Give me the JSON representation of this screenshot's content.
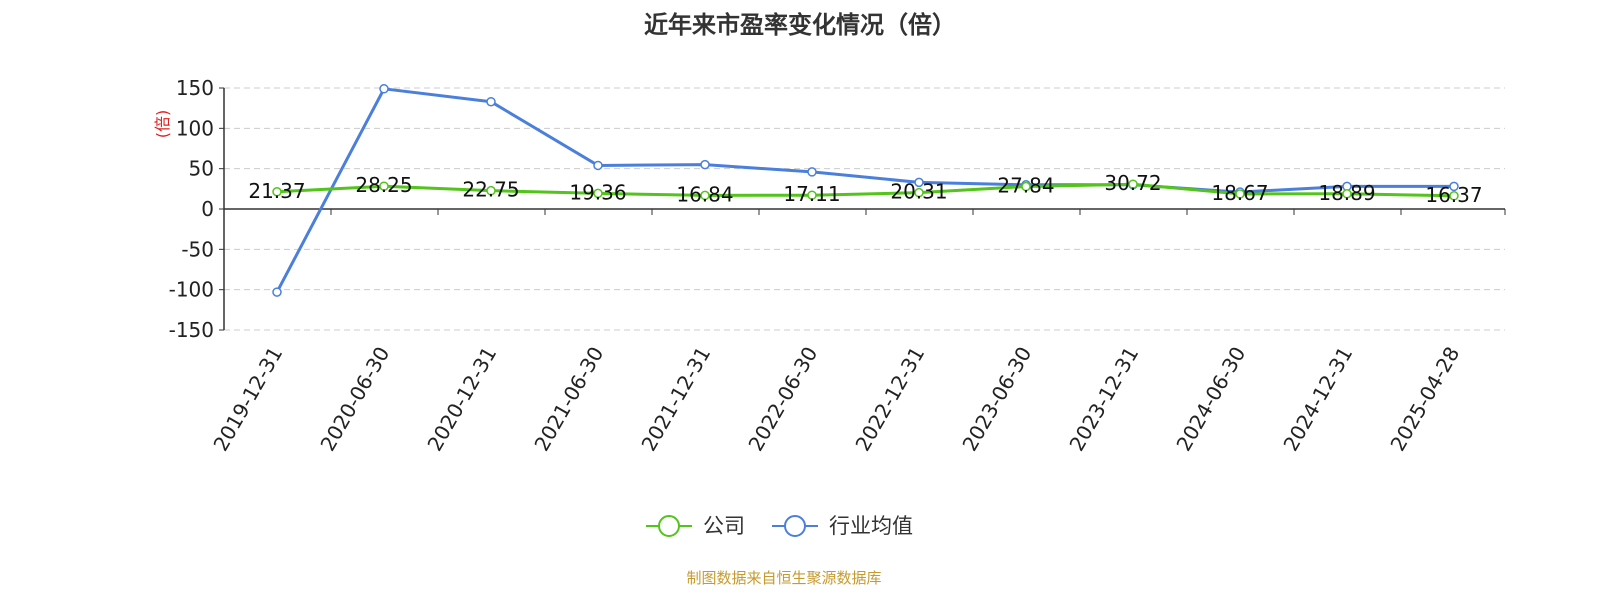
{
  "chart_data": {
    "type": "line",
    "title": "近年来市盈率变化情况（倍）",
    "ylabel": "(倍)",
    "x": [
      "2019-12-31",
      "2020-06-30",
      "2020-12-31",
      "2021-06-30",
      "2021-12-31",
      "2022-06-30",
      "2022-12-31",
      "2023-06-30",
      "2023-12-31",
      "2024-06-30",
      "2024-12-31",
      "2025-04-28"
    ],
    "ylim": [
      -150,
      150
    ],
    "yticks": [
      150,
      100,
      50,
      0,
      -50,
      -100,
      -150
    ],
    "grid": true,
    "legend_position": "bottom-center",
    "series": [
      {
        "name": "公司",
        "color": "#52c41a",
        "values": [
          21.37,
          28.25,
          22.75,
          19.36,
          16.84,
          17.11,
          20.31,
          27.84,
          30.72,
          18.67,
          18.89,
          16.37
        ],
        "labels": [
          "21.37",
          "28.25",
          "22.75",
          "19.36",
          "16.84",
          "17.11",
          "20.31",
          "27.84",
          "30.72",
          "18.67",
          "18.89",
          "16.37"
        ]
      },
      {
        "name": "行业均值",
        "color": "#4a7fdc",
        "values": [
          -103,
          149,
          133,
          54,
          55,
          46,
          33,
          30,
          30,
          21,
          28,
          28
        ]
      }
    ]
  },
  "source": "制图数据来自恒生聚源数据库",
  "colors": {
    "axis": "#333333",
    "grid": "#cccccc",
    "unit": "#e02020",
    "source": "#c89a2e"
  }
}
